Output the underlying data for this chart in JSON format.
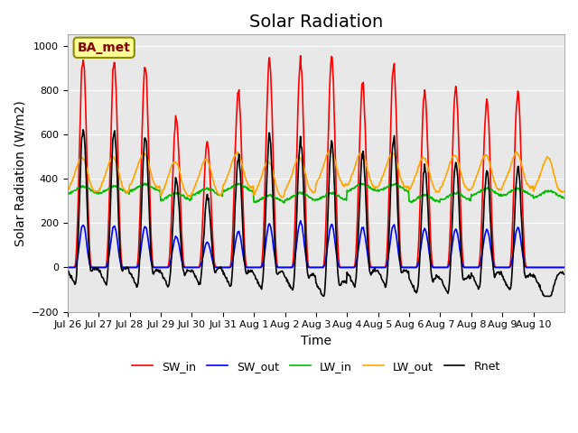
{
  "title": "Solar Radiation",
  "xlabel": "Time",
  "ylabel": "Solar Radiation (W/m2)",
  "station_label": "BA_met",
  "ylim": [
    -200,
    1050
  ],
  "x_tick_labels": [
    "Jul 26",
    "Jul 27",
    "Jul 28",
    "Jul 29",
    "Jul 30",
    "Jul 31",
    "Aug 1",
    "Aug 2",
    "Aug 3",
    "Aug 4",
    "Aug 5",
    "Aug 6",
    "Aug 7",
    "Aug 8",
    "Aug 9",
    "Aug 10"
  ],
  "colors": {
    "SW_in": "#FF0000",
    "SW_out": "#0000FF",
    "LW_in": "#00BB00",
    "LW_out": "#FFA500",
    "Rnet": "#000000"
  },
  "background_color": "#E8E8E8",
  "title_fontsize": 14,
  "axis_fontsize": 10,
  "tick_fontsize": 8
}
